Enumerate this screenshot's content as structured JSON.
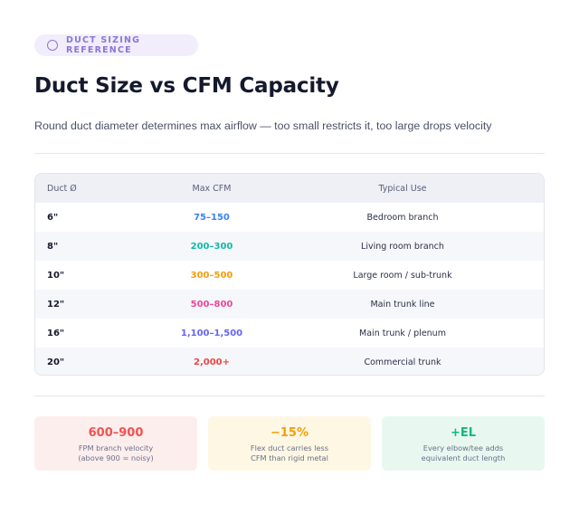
{
  "badge": {
    "icon": "circle-icon",
    "label": "DUCT SIZING REFERENCE"
  },
  "title": "Duct Size vs CFM Capacity",
  "subtitle": "Round duct diameter determines max airflow — too small restricts it, too large drops velocity",
  "table": {
    "headers": [
      "Duct Ø",
      "Max CFM",
      "Typical Use"
    ],
    "rows": [
      {
        "size": "6\"",
        "cfm": "75–150",
        "use": "Bedroom branch",
        "color": "#3b82f6"
      },
      {
        "size": "8\"",
        "cfm": "200–300",
        "use": "Living room branch",
        "color": "#14b8a6"
      },
      {
        "size": "10\"",
        "cfm": "300–500",
        "use": "Large room / sub-trunk",
        "color": "#f59e0b"
      },
      {
        "size": "12\"",
        "cfm": "500–800",
        "use": "Main trunk line",
        "color": "#ec4899"
      },
      {
        "size": "16\"",
        "cfm": "1,100–1,500",
        "use": "Main trunk / plenum",
        "color": "#6366f1"
      },
      {
        "size": "20\"",
        "cfm": "2,000+",
        "use": "Commercial trunk",
        "color": "#ef4444"
      }
    ]
  },
  "cards": [
    {
      "value": "600–900",
      "line1": "FPM branch velocity",
      "line2": "(above 900 = noisy)",
      "color": "#ef5350",
      "bg": "#fdeeee"
    },
    {
      "value": "−15%",
      "line1": "Flex duct carries less",
      "line2": "CFM than rigid metal",
      "color": "#f59e0b",
      "bg": "#fdf7e4"
    },
    {
      "value": "+EL",
      "line1": "Every elbow/tee adds",
      "line2": "equivalent duct length",
      "color": "#10b981",
      "bg": "#e8f8f0"
    }
  ]
}
